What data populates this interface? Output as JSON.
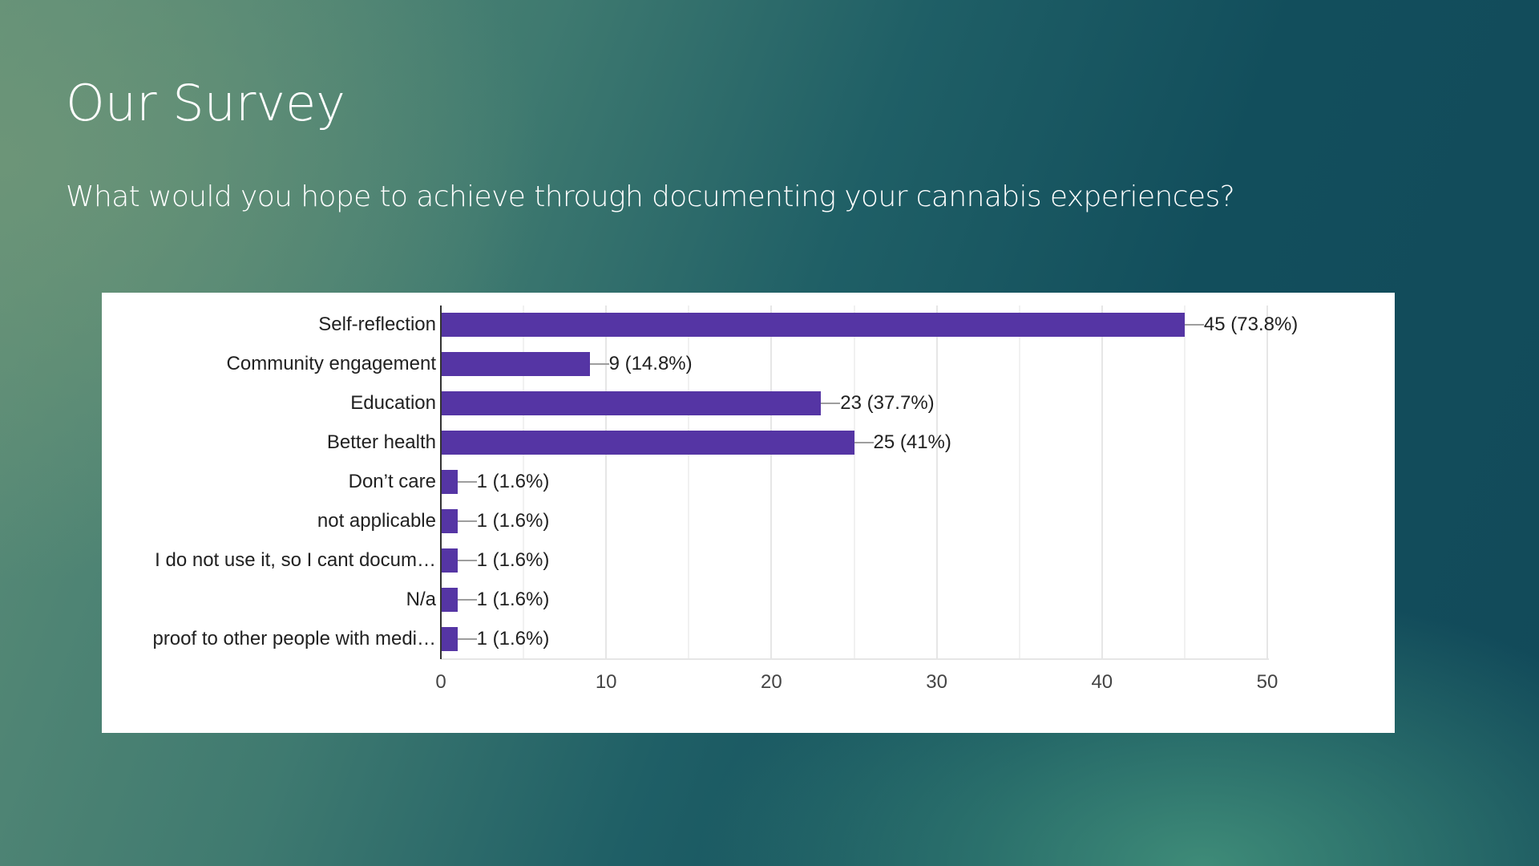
{
  "slide": {
    "title": "Our Survey",
    "subtitle": "What would you hope to achieve through documenting your cannabis experiences?"
  },
  "colors": {
    "bar": "#5535a4",
    "background_dark": "#124e5c",
    "background_light": "#5f8f78",
    "card": "#ffffff"
  },
  "chart_data": {
    "type": "bar",
    "orientation": "horizontal",
    "title": "What would you hope to achieve through documenting your cannabis experiences?",
    "categories": [
      "Self-reflection",
      "Community engagement",
      "Education",
      "Better health",
      "Don’t care",
      "not applicable",
      "I do not use it, so I cant docum…",
      "N/a",
      "proof to other people with medi…"
    ],
    "values": [
      45,
      9,
      23,
      25,
      1,
      1,
      1,
      1,
      1
    ],
    "value_labels": [
      "45 (73.8%)",
      "9 (14.8%)",
      "23 (37.7%)",
      "25 (41%)",
      "1 (1.6%)",
      "1 (1.6%)",
      "1 (1.6%)",
      "1 (1.6%)",
      "1 (1.6%)"
    ],
    "percentages": [
      73.8,
      14.8,
      37.7,
      41,
      1.6,
      1.6,
      1.6,
      1.6,
      1.6
    ],
    "xlabel": "",
    "ylabel": "",
    "xlim": [
      0,
      50
    ],
    "x_ticks": [
      "0",
      "10",
      "20",
      "30",
      "40",
      "50"
    ],
    "grid": true,
    "legend": "none"
  }
}
